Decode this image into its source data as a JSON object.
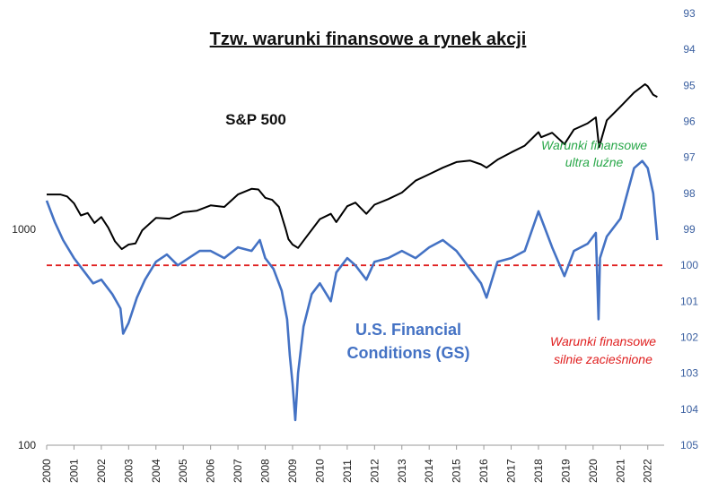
{
  "chart_data": {
    "type": "line",
    "title": "Tzw. warunki finansowe a rynek akcji",
    "x_ticks": [
      "2000",
      "2001",
      "2002",
      "2003",
      "2004",
      "2005",
      "2006",
      "2007",
      "2008",
      "2009",
      "2010",
      "2011",
      "2012",
      "2013",
      "2014",
      "2015",
      "2016",
      "2017",
      "2018",
      "2019",
      "2020",
      "2021",
      "2022"
    ],
    "left_axis": {
      "scale": "log",
      "range": [
        100,
        10000
      ],
      "tick_labels": [
        "100",
        "1000"
      ]
    },
    "right_axis": {
      "scale": "linear",
      "reversed": true,
      "range": [
        93,
        105
      ],
      "tick_labels": [
        "93",
        "94",
        "95",
        "96",
        "97",
        "98",
        "99",
        "100",
        "101",
        "102",
        "103",
        "104",
        "105"
      ]
    },
    "series": [
      {
        "name": "S&P 500",
        "axis": "left",
        "color": "#000000",
        "x": [
          2000.0,
          2000.5,
          2000.75,
          2001.0,
          2001.25,
          2001.5,
          2001.75,
          2002.0,
          2002.25,
          2002.5,
          2002.75,
          2003.0,
          2003.25,
          2003.5,
          2004.0,
          2004.5,
          2005.0,
          2005.5,
          2006.0,
          2006.5,
          2007.0,
          2007.5,
          2007.75,
          2008.0,
          2008.25,
          2008.5,
          2008.75,
          2008.85,
          2009.0,
          2009.2,
          2009.5,
          2010.0,
          2010.4,
          2010.6,
          2011.0,
          2011.3,
          2011.7,
          2012.0,
          2012.5,
          2013.0,
          2013.5,
          2014.0,
          2014.5,
          2015.0,
          2015.5,
          2015.9,
          2016.1,
          2016.5,
          2017.0,
          2017.5,
          2018.0,
          2018.1,
          2018.5,
          2018.95,
          2019.3,
          2019.8,
          2020.1,
          2020.22,
          2020.5,
          2021.0,
          2021.5,
          2021.9,
          2022.0,
          2022.2,
          2022.35
        ],
        "values": [
          1450,
          1450,
          1420,
          1320,
          1160,
          1190,
          1070,
          1140,
          1020,
          880,
          810,
          850,
          860,
          990,
          1130,
          1120,
          1200,
          1220,
          1290,
          1270,
          1450,
          1540,
          1530,
          1400,
          1370,
          1270,
          1000,
          900,
          850,
          820,
          920,
          1115,
          1180,
          1080,
          1280,
          1330,
          1180,
          1300,
          1380,
          1480,
          1680,
          1800,
          1930,
          2050,
          2080,
          2000,
          1930,
          2100,
          2270,
          2440,
          2820,
          2670,
          2800,
          2480,
          2900,
          3100,
          3300,
          2400,
          3200,
          3700,
          4300,
          4700,
          4600,
          4200,
          4100
        ]
      },
      {
        "name": "U.S. Financial Conditions (GS)",
        "axis": "right",
        "color": "#4472c4",
        "x": [
          2000.0,
          2000.3,
          2000.6,
          2001.0,
          2001.3,
          2001.7,
          2002.0,
          2002.4,
          2002.7,
          2002.8,
          2003.0,
          2003.3,
          2003.6,
          2004.0,
          2004.4,
          2004.8,
          2005.2,
          2005.6,
          2006.0,
          2006.5,
          2007.0,
          2007.5,
          2007.8,
          2008.0,
          2008.3,
          2008.6,
          2008.8,
          2008.9,
          2009.0,
          2009.1,
          2009.2,
          2009.4,
          2009.7,
          2010.0,
          2010.4,
          2010.6,
          2011.0,
          2011.3,
          2011.7,
          2012.0,
          2012.5,
          2013.0,
          2013.5,
          2014.0,
          2014.5,
          2015.0,
          2015.5,
          2015.9,
          2016.1,
          2016.5,
          2017.0,
          2017.5,
          2018.0,
          2018.2,
          2018.5,
          2018.95,
          2019.3,
          2019.8,
          2020.1,
          2020.2,
          2020.25,
          2020.5,
          2021.0,
          2021.5,
          2021.8,
          2022.0,
          2022.2,
          2022.35
        ],
        "values": [
          98.2,
          98.8,
          99.3,
          99.8,
          100.1,
          100.5,
          100.4,
          100.8,
          101.2,
          101.9,
          101.6,
          100.9,
          100.4,
          99.9,
          99.7,
          100.0,
          99.8,
          99.6,
          99.6,
          99.8,
          99.5,
          99.6,
          99.3,
          99.8,
          100.1,
          100.7,
          101.5,
          102.5,
          103.3,
          104.3,
          103.0,
          101.7,
          100.8,
          100.5,
          101.0,
          100.2,
          99.8,
          100.0,
          100.4,
          99.9,
          99.8,
          99.6,
          99.8,
          99.5,
          99.3,
          99.6,
          100.1,
          100.5,
          100.9,
          99.9,
          99.8,
          99.6,
          98.5,
          98.9,
          99.5,
          100.3,
          99.6,
          99.4,
          99.1,
          101.5,
          99.8,
          99.2,
          98.7,
          97.3,
          97.1,
          97.3,
          98.0,
          99.3
        ]
      }
    ],
    "reference_line": {
      "axis": "right",
      "value": 100,
      "color": "#e02020",
      "style": "dashed"
    },
    "annotations": {
      "sp_label": "S&P 500",
      "fc_label_line1": "U.S. Financial",
      "fc_label_line2": "Conditions (GS)",
      "loose_line1": "Warunki finansowe",
      "loose_line2": "ultra luźne",
      "tight_line1": "Warunki finansowe",
      "tight_line2": "silnie zacieśnione"
    },
    "colors": {
      "annotation_loose": "#2aa84a",
      "annotation_tight": "#e02020",
      "right_axis": "#3a5fa0"
    },
    "grid": false,
    "legend": "none"
  }
}
